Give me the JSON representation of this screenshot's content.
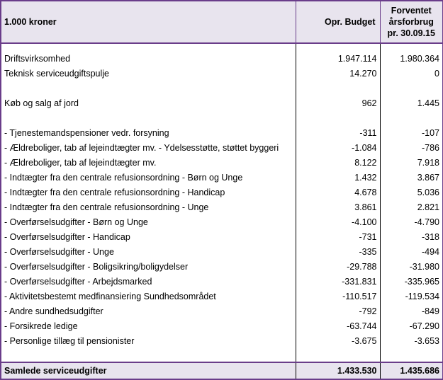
{
  "header": {
    "col1": "1.000 kroner",
    "col2": "Opr. Budget",
    "col3_line1": "Forventet",
    "col3_line2": "årsforbrug",
    "col3_line3": "pr. 30.09.15"
  },
  "rows_top": [
    {
      "label": "Driftsvirksomhed",
      "budget": "1.947.114",
      "forecast": "1.980.364"
    },
    {
      "label": "Teknisk serviceudgiftspulje",
      "budget": "14.270",
      "forecast": "0"
    }
  ],
  "row_jord": {
    "label": "Køb og salg af jord",
    "budget": "962",
    "forecast": "1.445"
  },
  "rows_detail": [
    {
      "label": "- Tjenestemandspensioner vedr. forsyning",
      "budget": "-311",
      "forecast": "-107"
    },
    {
      "label": "- Ældreboliger, tab af lejeindtægter mv. - Ydelsesstøtte, støttet byggeri",
      "budget": "-1.084",
      "forecast": "-786"
    },
    {
      "label": "- Ældreboliger, tab af lejeindtægter mv.",
      "budget": "8.122",
      "forecast": "7.918"
    },
    {
      "label": "- Indtægter fra den centrale refusionsordning - Børn og Unge",
      "budget": "1.432",
      "forecast": "3.867"
    },
    {
      "label": "- Indtægter fra den centrale refusionsordning - Handicap",
      "budget": "4.678",
      "forecast": "5.036"
    },
    {
      "label": "- Indtægter fra den centrale refusionsordning - Unge",
      "budget": "3.861",
      "forecast": "2.821"
    },
    {
      "label": "- Overførselsudgifter - Børn og Unge",
      "budget": "-4.100",
      "forecast": "-4.790"
    },
    {
      "label": "- Overførselsudgifter - Handicap",
      "budget": "-731",
      "forecast": "-318"
    },
    {
      "label": "- Overførselsudgifter - Unge",
      "budget": "-335",
      "forecast": "-494"
    },
    {
      "label": "- Overførselsudgifter - Boligsikring/boligydelser",
      "budget": "-29.788",
      "forecast": "-31.980"
    },
    {
      "label": "- Overførselsudgifter - Arbejdsmarked",
      "budget": "-331.831",
      "forecast": "-335.965"
    },
    {
      "label": "- Aktivitetsbestemt medfinansiering Sundhedsområdet",
      "budget": "-110.517",
      "forecast": "-119.534"
    },
    {
      "label": "- Andre sundhedsudgifter",
      "budget": "-792",
      "forecast": "-849"
    },
    {
      "label": "- Forsikrede ledige",
      "budget": "-63.744",
      "forecast": "-67.290"
    },
    {
      "label": "- Personlige tillæg til pensionister",
      "budget": "-3.675",
      "forecast": "-3.653"
    }
  ],
  "total": {
    "label": "Samlede serviceudgifter",
    "budget": "1.433.530",
    "forecast": "1.435.686"
  }
}
